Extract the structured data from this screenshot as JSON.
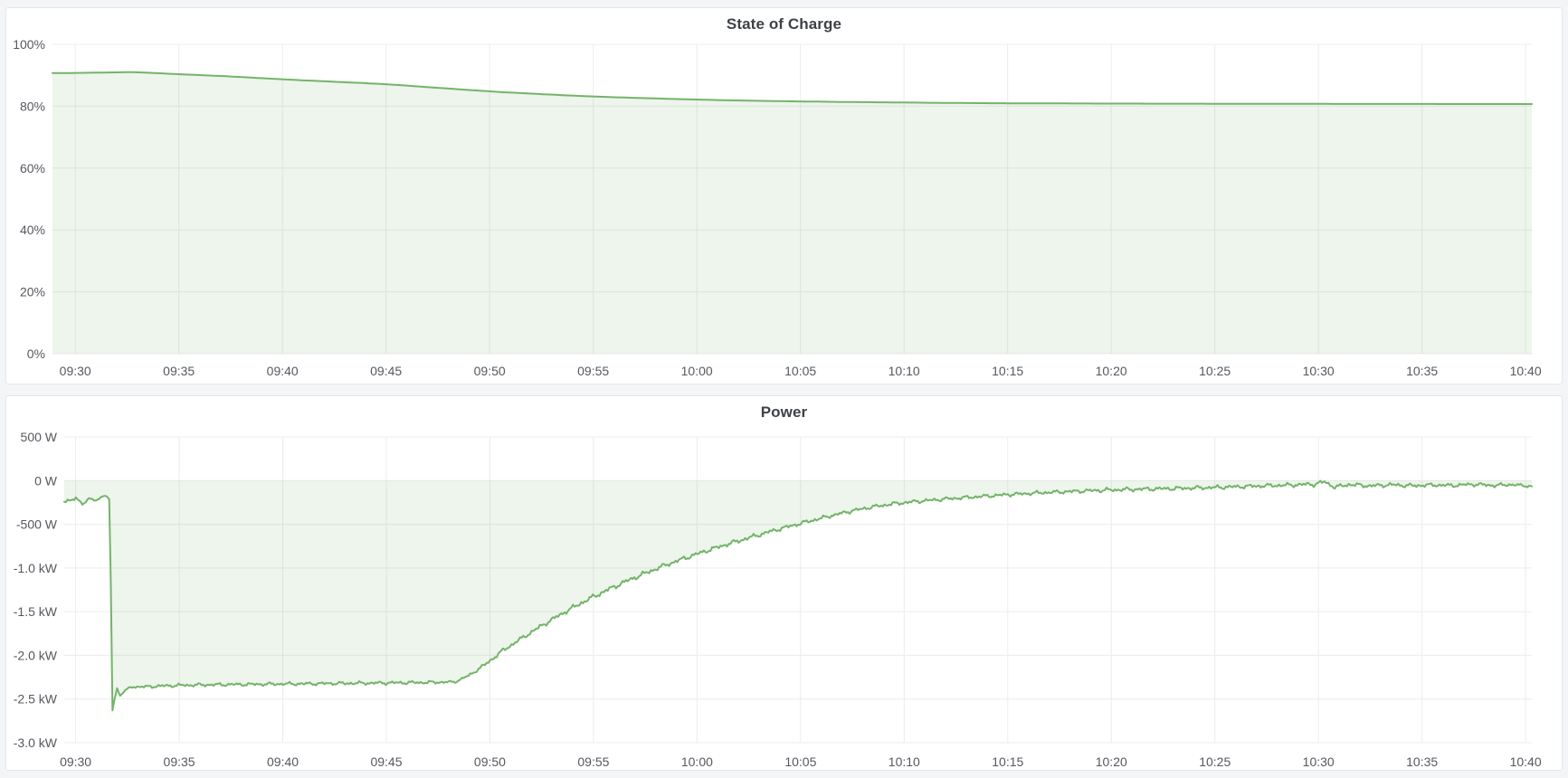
{
  "colors": {
    "page_bg": "#f4f5f7",
    "panel_bg": "#ffffff",
    "panel_border": "#e3e6ec",
    "grid": "#ececec",
    "tick_text": "#55585e",
    "title_text": "#3e4247",
    "series_line": "#74b36a",
    "series_fill": "rgba(116,179,106,0.13)"
  },
  "chart_data": [
    {
      "type": "area",
      "title": "State of Charge",
      "unit": "percent",
      "legend": "none",
      "grid": "on",
      "x_axis_start_label": "09:30",
      "x_axis_end_label": "10:40",
      "x_ticks": [
        {
          "t": 0,
          "label": "09:30"
        },
        {
          "t": 5,
          "label": "09:35"
        },
        {
          "t": 10,
          "label": "09:40"
        },
        {
          "t": 15,
          "label": "09:45"
        },
        {
          "t": 20,
          "label": "09:50"
        },
        {
          "t": 25,
          "label": "09:55"
        },
        {
          "t": 30,
          "label": "10:00"
        },
        {
          "t": 35,
          "label": "10:05"
        },
        {
          "t": 40,
          "label": "10:10"
        },
        {
          "t": 45,
          "label": "10:15"
        },
        {
          "t": 50,
          "label": "10:20"
        },
        {
          "t": 55,
          "label": "10:25"
        },
        {
          "t": 60,
          "label": "10:30"
        },
        {
          "t": 65,
          "label": "10:35"
        },
        {
          "t": 70,
          "label": "10:40"
        }
      ],
      "y_ticks": [
        {
          "v": 100,
          "label": "100%"
        },
        {
          "v": 80,
          "label": "80%"
        },
        {
          "v": 60,
          "label": "60%"
        },
        {
          "v": 40,
          "label": "40%"
        },
        {
          "v": 20,
          "label": "20%"
        },
        {
          "v": 0,
          "label": "0%"
        }
      ],
      "y_range": [
        0,
        100
      ],
      "x_range": [
        -1.1,
        70.3
      ],
      "fill_to": 0,
      "smooth": true,
      "sample_step": 0.3,
      "points": [
        [
          -1.1,
          90.7
        ],
        [
          0,
          90.75
        ],
        [
          1,
          90.85
        ],
        [
          2,
          90.95
        ],
        [
          2.6,
          91.0
        ],
        [
          3.2,
          90.9
        ],
        [
          5,
          90.35
        ],
        [
          7.5,
          89.6
        ],
        [
          10,
          88.7
        ],
        [
          12.5,
          87.9
        ],
        [
          15,
          87.1
        ],
        [
          17.5,
          85.95
        ],
        [
          20,
          84.8
        ],
        [
          22.5,
          83.9
        ],
        [
          25,
          83.15
        ],
        [
          27.5,
          82.6
        ],
        [
          30,
          82.15
        ],
        [
          32.5,
          81.8
        ],
        [
          35,
          81.55
        ],
        [
          37.5,
          81.35
        ],
        [
          40,
          81.2
        ],
        [
          42.5,
          81.05
        ],
        [
          45,
          80.95
        ],
        [
          47.5,
          80.9
        ],
        [
          50,
          80.85
        ],
        [
          55,
          80.8
        ],
        [
          60,
          80.75
        ],
        [
          65,
          80.72
        ],
        [
          70.3,
          80.7
        ]
      ]
    },
    {
      "type": "area",
      "title": "Power",
      "unit": "watt",
      "legend": "none",
      "grid": "on",
      "x_axis_start_label": "09:30",
      "x_axis_end_label": "10:40",
      "x_ticks": [
        {
          "t": 0,
          "label": "09:30"
        },
        {
          "t": 5,
          "label": "09:35"
        },
        {
          "t": 10,
          "label": "09:40"
        },
        {
          "t": 15,
          "label": "09:45"
        },
        {
          "t": 20,
          "label": "09:50"
        },
        {
          "t": 25,
          "label": "09:55"
        },
        {
          "t": 30,
          "label": "10:00"
        },
        {
          "t": 35,
          "label": "10:05"
        },
        {
          "t": 40,
          "label": "10:10"
        },
        {
          "t": 45,
          "label": "10:15"
        },
        {
          "t": 50,
          "label": "10:20"
        },
        {
          "t": 55,
          "label": "10:25"
        },
        {
          "t": 60,
          "label": "10:30"
        },
        {
          "t": 65,
          "label": "10:35"
        },
        {
          "t": 70,
          "label": "10:40"
        }
      ],
      "y_ticks": [
        {
          "v": 500,
          "label": "500 W"
        },
        {
          "v": 0,
          "label": "0 W"
        },
        {
          "v": -500,
          "label": "-500 W"
        },
        {
          "v": -1000,
          "label": "-1.0 kW"
        },
        {
          "v": -1500,
          "label": "-1.5 kW"
        },
        {
          "v": -2000,
          "label": "-2.0 kW"
        },
        {
          "v": -2500,
          "label": "-2.5 kW"
        },
        {
          "v": -3000,
          "label": "-3.0 kW"
        }
      ],
      "y_range": [
        -3000,
        500
      ],
      "x_range": [
        -0.55,
        70.3
      ],
      "fill_to": 0,
      "smooth": false,
      "sample_step": 0.08,
      "noise": {
        "freqs": [
          12.9,
          7.3,
          31.7
        ],
        "phases": [
          0.3,
          2.1,
          0.9
        ],
        "scale": 0.5
      },
      "points": [
        [
          -0.55,
          -235,
          20
        ],
        [
          0,
          -215,
          22
        ],
        [
          0.4,
          -255,
          18
        ],
        [
          0.7,
          -205,
          15
        ],
        [
          1.0,
          -235,
          12
        ],
        [
          1.3,
          -170,
          8
        ],
        [
          1.5,
          -180,
          5
        ],
        [
          1.62,
          -215,
          0
        ],
        [
          1.7,
          -1200,
          0
        ],
        [
          1.78,
          -2630,
          0
        ],
        [
          1.88,
          -2500,
          0
        ],
        [
          2.0,
          -2380,
          8
        ],
        [
          2.15,
          -2460,
          8
        ],
        [
          2.35,
          -2410,
          10
        ],
        [
          2.7,
          -2360,
          12
        ],
        [
          3.3,
          -2360,
          14
        ],
        [
          4.2,
          -2350,
          16
        ],
        [
          5.5,
          -2340,
          16
        ],
        [
          7,
          -2335,
          16
        ],
        [
          9,
          -2330,
          16
        ],
        [
          11,
          -2325,
          16
        ],
        [
          13,
          -2320,
          16
        ],
        [
          15,
          -2315,
          16
        ],
        [
          17,
          -2310,
          16
        ],
        [
          18.3,
          -2305,
          12
        ],
        [
          19,
          -2230,
          14
        ],
        [
          19.8,
          -2100,
          18
        ],
        [
          20.6,
          -1950,
          20
        ],
        [
          21.5,
          -1810,
          20
        ],
        [
          22.5,
          -1660,
          22
        ],
        [
          23.5,
          -1520,
          22
        ],
        [
          24.5,
          -1390,
          24
        ],
        [
          25.5,
          -1270,
          24
        ],
        [
          26.5,
          -1160,
          24
        ],
        [
          27.5,
          -1060,
          24
        ],
        [
          28.5,
          -965,
          22
        ],
        [
          29.5,
          -880,
          22
        ],
        [
          30.5,
          -800,
          22
        ],
        [
          31.5,
          -725,
          22
        ],
        [
          32.5,
          -655,
          22
        ],
        [
          33.5,
          -585,
          20
        ],
        [
          34.5,
          -520,
          20
        ],
        [
          35.5,
          -460,
          20
        ],
        [
          36.5,
          -400,
          18
        ],
        [
          37.5,
          -345,
          18
        ],
        [
          38.5,
          -300,
          18
        ],
        [
          39.5,
          -265,
          18
        ],
        [
          40.5,
          -240,
          18
        ],
        [
          42,
          -210,
          18
        ],
        [
          43.5,
          -185,
          18
        ],
        [
          45,
          -160,
          18
        ],
        [
          46.5,
          -140,
          18
        ],
        [
          48,
          -125,
          18
        ],
        [
          49.5,
          -110,
          20
        ],
        [
          51,
          -100,
          20
        ],
        [
          53,
          -90,
          20
        ],
        [
          55,
          -78,
          20
        ],
        [
          57,
          -62,
          20
        ],
        [
          58.5,
          -52,
          20
        ],
        [
          59.8,
          -40,
          22
        ],
        [
          60.3,
          -15,
          20
        ],
        [
          60.8,
          -75,
          20
        ],
        [
          61.5,
          -45,
          20
        ],
        [
          62.5,
          -60,
          20
        ],
        [
          63.5,
          -48,
          20
        ],
        [
          64.5,
          -58,
          20
        ],
        [
          65.5,
          -50,
          18
        ],
        [
          66.5,
          -55,
          18
        ],
        [
          67.5,
          -42,
          18
        ],
        [
          68.5,
          -55,
          18
        ],
        [
          69.3,
          -45,
          16
        ],
        [
          70.3,
          -65,
          12
        ]
      ]
    }
  ]
}
